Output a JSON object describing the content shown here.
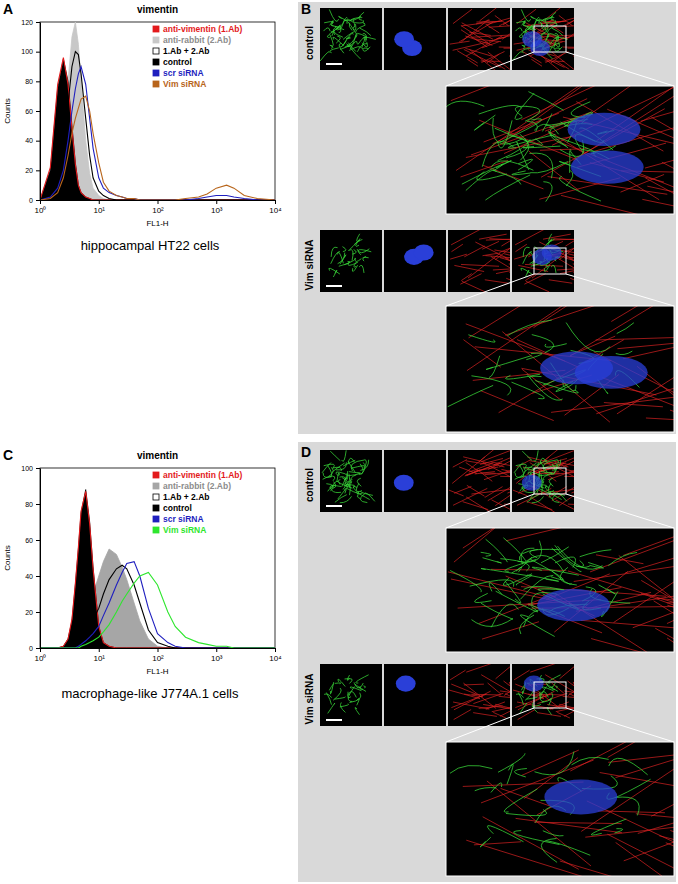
{
  "chart_data": [
    {
      "type": "line",
      "title": "vimentin",
      "subtitle": "hippocampal HT22 cells",
      "xlabel": "FL1-H",
      "ylabel": "Counts",
      "log": "x",
      "grid": false,
      "legend": "top-right",
      "x": [
        1,
        1.5,
        2,
        2.5,
        3,
        3.5,
        4,
        4.5,
        5,
        6,
        7,
        8,
        10,
        12,
        15,
        20,
        25,
        30,
        40,
        50,
        70,
        100,
        150,
        200,
        300,
        500,
        700,
        1000,
        1500,
        2000,
        3000,
        5000,
        10000
      ],
      "xlim": [
        1,
        10000
      ],
      "xticks": [
        {
          "value": 1,
          "label": "10⁰"
        },
        {
          "value": 10,
          "label": "10¹"
        },
        {
          "value": 100,
          "label": "10²"
        },
        {
          "value": 1000,
          "label": "10³"
        },
        {
          "value": 10000,
          "label": "10⁴"
        }
      ],
      "ylim": [
        0,
        120
      ],
      "yticks": [
        0,
        20,
        40,
        60,
        80,
        100,
        120
      ],
      "series": [
        {
          "name": "anti-vimentin (1.Ab)",
          "color": "#e31a1c",
          "type": "line",
          "marker": "square",
          "values": [
            0,
            22,
            78,
            96,
            78,
            48,
            24,
            10,
            5,
            2,
            1,
            0,
            0,
            0,
            0,
            0,
            0,
            0,
            0,
            0,
            0,
            0,
            0,
            0,
            0,
            0,
            0,
            0,
            0,
            0,
            0,
            0,
            0
          ]
        },
        {
          "name": "anti-rabbit (2.Ab)",
          "color": "#c8c8c8",
          "type": "area",
          "marker": "square",
          "values": [
            0,
            5,
            20,
            45,
            80,
            110,
            120,
            105,
            80,
            40,
            18,
            8,
            3,
            1,
            0,
            0,
            0,
            0,
            0,
            0,
            0,
            0,
            0,
            0,
            0,
            0,
            0,
            0,
            0,
            0,
            0,
            0,
            0
          ]
        },
        {
          "name": "1.Ab + 2.Ab",
          "color": "#000000",
          "type": "line",
          "marker": "open-square",
          "values": [
            0,
            3,
            15,
            35,
            65,
            90,
            100,
            98,
            85,
            55,
            30,
            15,
            6,
            3,
            1,
            0,
            0,
            0,
            0,
            0,
            0,
            0,
            0,
            0,
            0,
            0,
            0,
            0,
            0,
            0,
            0,
            0,
            0
          ]
        },
        {
          "name": "control",
          "color": "#000000",
          "type": "area",
          "marker": "square",
          "values": [
            0,
            20,
            75,
            95,
            80,
            50,
            25,
            10,
            5,
            2,
            1,
            0,
            0,
            0,
            0,
            0,
            0,
            0,
            0,
            0,
            0,
            0,
            0,
            0,
            0,
            0,
            0,
            0,
            0,
            0,
            0,
            0,
            0
          ]
        },
        {
          "name": "scr siRNA",
          "color": "#1f1fbf",
          "type": "line",
          "marker": "square",
          "values": [
            0,
            2,
            8,
            20,
            40,
            60,
            75,
            85,
            90,
            78,
            55,
            35,
            15,
            8,
            5,
            3,
            2,
            1,
            1,
            0,
            0,
            0,
            0,
            0,
            0,
            1,
            2,
            3,
            3,
            2,
            1,
            0,
            0
          ]
        },
        {
          "name": "Vim siRNA",
          "color": "#b8651b",
          "type": "line",
          "marker": "square",
          "values": [
            0,
            1,
            5,
            15,
            30,
            45,
            55,
            62,
            68,
            70,
            60,
            45,
            25,
            12,
            6,
            3,
            2,
            1,
            1,
            0,
            0,
            0,
            0,
            0,
            1,
            2,
            4,
            8,
            10,
            8,
            3,
            1,
            0
          ]
        }
      ]
    },
    {
      "type": "line",
      "title": "vimentin",
      "subtitle": "macrophage-like J774A.1 cells",
      "xlabel": "FL1-H",
      "ylabel": "Counts",
      "log": "x",
      "grid": false,
      "legend": "top-right",
      "x": [
        1,
        1.5,
        2,
        2.5,
        3,
        3.5,
        4,
        4.5,
        5,
        6,
        7,
        8,
        10,
        12,
        15,
        20,
        25,
        30,
        40,
        50,
        70,
        100,
        150,
        200,
        300,
        500,
        700,
        1000,
        1500,
        2000,
        3000,
        5000,
        10000
      ],
      "xlim": [
        1,
        10000
      ],
      "xticks": [
        {
          "value": 1,
          "label": "10⁰"
        },
        {
          "value": 10,
          "label": "10¹"
        },
        {
          "value": 100,
          "label": "10²"
        },
        {
          "value": 1000,
          "label": "10³"
        },
        {
          "value": 10000,
          "label": "10⁴"
        }
      ],
      "ylim": [
        0,
        100
      ],
      "yticks": [
        0,
        20,
        40,
        60,
        80,
        100
      ],
      "series": [
        {
          "name": "anti-vimentin (1.Ab)",
          "color": "#e31a1c",
          "type": "line",
          "marker": "square",
          "values": [
            0,
            0,
            0,
            1,
            5,
            16,
            36,
            56,
            76,
            87,
            69,
            44,
            12,
            3,
            1,
            0,
            0,
            0,
            0,
            0,
            0,
            0,
            0,
            0,
            0,
            0,
            0,
            0,
            0,
            0,
            0,
            0,
            0
          ]
        },
        {
          "name": "anti-rabbit (2.Ab)",
          "color": "#a6a6a6",
          "type": "area",
          "marker": "square",
          "values": [
            0,
            0,
            0,
            0,
            0,
            1,
            2,
            4,
            8,
            15,
            22,
            30,
            40,
            48,
            55,
            52,
            45,
            38,
            25,
            15,
            5,
            1,
            0,
            0,
            0,
            0,
            0,
            0,
            0,
            0,
            0,
            0,
            0
          ]
        },
        {
          "name": "1.Ab + 2.Ab",
          "color": "#000000",
          "type": "line",
          "marker": "open-square",
          "values": [
            0,
            0,
            0,
            0,
            0,
            0,
            1,
            2,
            4,
            8,
            12,
            16,
            22,
            30,
            38,
            44,
            46,
            44,
            35,
            25,
            10,
            3,
            1,
            0,
            0,
            0,
            0,
            0,
            0,
            0,
            0,
            0,
            0
          ]
        },
        {
          "name": "control",
          "color": "#000000",
          "type": "area",
          "marker": "square",
          "values": [
            0,
            0,
            0,
            1,
            5,
            15,
            35,
            55,
            75,
            88,
            70,
            45,
            12,
            3,
            1,
            0,
            0,
            0,
            0,
            0,
            0,
            0,
            0,
            0,
            0,
            0,
            0,
            0,
            0,
            0,
            0,
            0,
            0
          ]
        },
        {
          "name": "scr siRNA",
          "color": "#1f1fbf",
          "type": "line",
          "marker": "square",
          "values": [
            0,
            0,
            0,
            0,
            0,
            0,
            0,
            1,
            2,
            4,
            6,
            8,
            12,
            18,
            25,
            35,
            42,
            47,
            48,
            40,
            22,
            8,
            3,
            1,
            0,
            0,
            0,
            0,
            0,
            0,
            0,
            0,
            0
          ]
        },
        {
          "name": "Vim siRNA",
          "color": "#2ee62e",
          "type": "line",
          "marker": "square",
          "values": [
            0,
            0,
            0,
            0,
            0,
            0,
            0,
            0,
            1,
            2,
            3,
            4,
            6,
            9,
            13,
            20,
            26,
            30,
            36,
            40,
            42,
            35,
            20,
            12,
            6,
            3,
            2,
            1,
            1,
            0,
            0,
            0,
            0
          ]
        }
      ]
    }
  ],
  "panel_labels": [
    "A",
    "B",
    "C",
    "D"
  ],
  "micrographs": [
    {
      "rows": [
        {
          "label": "control"
        },
        {
          "label": "Vim siRNA"
        }
      ]
    },
    {
      "rows": [
        {
          "label": "control"
        },
        {
          "label": "Vim siRNA"
        }
      ]
    }
  ]
}
